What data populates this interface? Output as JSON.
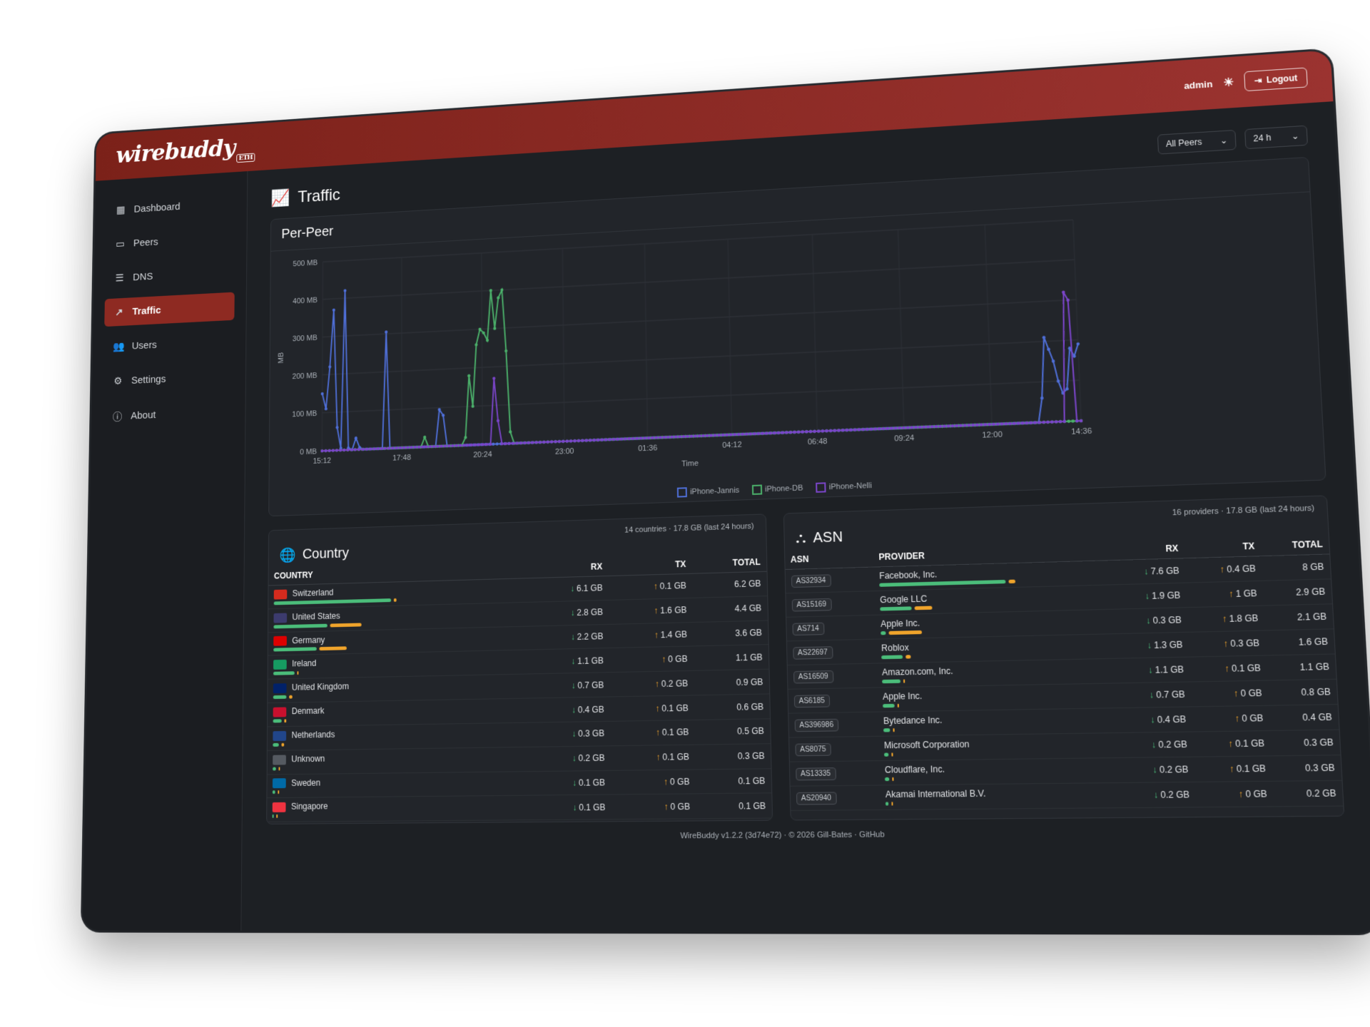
{
  "app": {
    "logo": "wirebuddy",
    "logo_badge": "ETH"
  },
  "header": {
    "user": "admin",
    "logout_label": "Logout"
  },
  "sidebar": {
    "items": [
      {
        "label": "Dashboard",
        "icon": "dashboard-icon"
      },
      {
        "label": "Peers",
        "icon": "devices-icon"
      },
      {
        "label": "DNS",
        "icon": "dns-icon"
      },
      {
        "label": "Traffic",
        "icon": "trending-icon",
        "active": true
      },
      {
        "label": "Users",
        "icon": "users-icon"
      },
      {
        "label": "Settings",
        "icon": "gear-icon"
      },
      {
        "label": "About",
        "icon": "info-icon"
      }
    ]
  },
  "page": {
    "title": "Traffic",
    "peer_select": "All Peers",
    "range_select": "24 h"
  },
  "chart_card": {
    "title": "Per-Peer"
  },
  "chart_data": {
    "type": "line",
    "xlabel": "Time",
    "ylabel": "MB",
    "ylim": [
      0,
      500
    ],
    "yticks": [
      "0 MB",
      "100 MB",
      "200 MB",
      "300 MB",
      "400 MB",
      "500 MB"
    ],
    "xticks": [
      "15:12",
      "17:48",
      "20:24",
      "23:00",
      "01:36",
      "04:12",
      "06:48",
      "09:24",
      "12:00",
      "14:36"
    ],
    "legend_position": "bottom",
    "series": [
      {
        "name": "iPhone-Jannis",
        "color": "#4f6fd8",
        "values": [
          150,
          110,
          220,
          370,
          60,
          5,
          420,
          5,
          0,
          30,
          5,
          0,
          0,
          0,
          0,
          0,
          0,
          305,
          0,
          0,
          0,
          0,
          0,
          0,
          0,
          0,
          0,
          0,
          0,
          0,
          0,
          95,
          80,
          0,
          0,
          0,
          0,
          0,
          0,
          0,
          0,
          0,
          0,
          0,
          0,
          0,
          0,
          0,
          0,
          0,
          0,
          0,
          0,
          0,
          0,
          0,
          0,
          0,
          0,
          0,
          0,
          0,
          0,
          0,
          0,
          0,
          0,
          0,
          0,
          0,
          0,
          0,
          0,
          0,
          0,
          0,
          0,
          0,
          0,
          0,
          0,
          0,
          0,
          0,
          0,
          0,
          0,
          0,
          0,
          0,
          0,
          0,
          0,
          0,
          0,
          0,
          0,
          0,
          0,
          0,
          0,
          0,
          0,
          0,
          0,
          0,
          0,
          0,
          0,
          0,
          0,
          0,
          0,
          0,
          0,
          0,
          0,
          0,
          0,
          0,
          0,
          0,
          0,
          0,
          0,
          0,
          0,
          0,
          0,
          0,
          0,
          0,
          0,
          0,
          0,
          0,
          0,
          0,
          0,
          0,
          0,
          0,
          0,
          0,
          0,
          0,
          0,
          0,
          0,
          0,
          0,
          0,
          0,
          0,
          0,
          0,
          0,
          0,
          0,
          0,
          0,
          0,
          0,
          0,
          0,
          0,
          0,
          0,
          0,
          0,
          0,
          0,
          0,
          0,
          0,
          0,
          0,
          0,
          0,
          0,
          0,
          60,
          210,
          180,
          150,
          100,
          70,
          80,
          180,
          160,
          190
        ]
      },
      {
        "name": "iPhone-DB",
        "color": "#4bb06a",
        "values": [
          0,
          0,
          0,
          0,
          0,
          0,
          0,
          0,
          0,
          0,
          0,
          0,
          0,
          0,
          0,
          0,
          0,
          0,
          0,
          0,
          0,
          0,
          0,
          0,
          0,
          0,
          0,
          0,
          25,
          0,
          0,
          0,
          0,
          0,
          0,
          0,
          0,
          0,
          0,
          20,
          180,
          100,
          260,
          300,
          290,
          270,
          400,
          300,
          380,
          400,
          240,
          30,
          0,
          0,
          0,
          0,
          0,
          0,
          0,
          0,
          0,
          0,
          0,
          0,
          0,
          0,
          0,
          0,
          0,
          0,
          0,
          0,
          0,
          0,
          0,
          0,
          0,
          0,
          0,
          0,
          0,
          0,
          0,
          0,
          0,
          0,
          0,
          0,
          0,
          0,
          0,
          0,
          0,
          0,
          0,
          0,
          0,
          0,
          0,
          0,
          0,
          0,
          0,
          0,
          0,
          0,
          0,
          0,
          0,
          0,
          0,
          0,
          0,
          0,
          0,
          0,
          0,
          0,
          0,
          0,
          0,
          0,
          0,
          0,
          0,
          0,
          0,
          0,
          0,
          0,
          0,
          0,
          0,
          0,
          0,
          0,
          0,
          0,
          0,
          0,
          0,
          0,
          0,
          0,
          0,
          0,
          0,
          0,
          0,
          0,
          0,
          0,
          0,
          0,
          0,
          0,
          0,
          0,
          0,
          0,
          0,
          0,
          0,
          0,
          0,
          0,
          0,
          0,
          0,
          0,
          0,
          0,
          0,
          0,
          0,
          0,
          0,
          0,
          0,
          0,
          0,
          0,
          0,
          0,
          0,
          0,
          0,
          0,
          0,
          0,
          0,
          0,
          0,
          0,
          0,
          0,
          0
        ]
      },
      {
        "name": "iPhone-Nelli",
        "color": "#7a45c8",
        "values": [
          0,
          0,
          0,
          0,
          0,
          0,
          0,
          0,
          0,
          0,
          0,
          0,
          0,
          0,
          0,
          0,
          0,
          0,
          0,
          0,
          0,
          0,
          0,
          0,
          0,
          0,
          0,
          0,
          0,
          0,
          0,
          0,
          0,
          0,
          0,
          0,
          0,
          0,
          0,
          0,
          0,
          0,
          0,
          0,
          0,
          0,
          170,
          60,
          0,
          0,
          0,
          0,
          0,
          0,
          0,
          0,
          0,
          0,
          0,
          0,
          0,
          0,
          0,
          0,
          0,
          0,
          0,
          0,
          0,
          0,
          0,
          0,
          0,
          0,
          0,
          0,
          0,
          0,
          0,
          0,
          0,
          0,
          0,
          0,
          0,
          0,
          0,
          0,
          0,
          0,
          0,
          0,
          0,
          0,
          0,
          0,
          0,
          0,
          0,
          0,
          0,
          0,
          0,
          0,
          0,
          0,
          0,
          0,
          0,
          0,
          0,
          0,
          0,
          0,
          0,
          0,
          0,
          0,
          0,
          0,
          0,
          0,
          0,
          0,
          0,
          0,
          0,
          0,
          0,
          0,
          0,
          0,
          0,
          0,
          0,
          0,
          0,
          0,
          0,
          0,
          0,
          0,
          0,
          0,
          0,
          0,
          0,
          0,
          0,
          0,
          0,
          0,
          0,
          0,
          0,
          0,
          0,
          0,
          0,
          0,
          0,
          0,
          0,
          0,
          0,
          0,
          0,
          0,
          0,
          0,
          0,
          0,
          0,
          0,
          0,
          0,
          0,
          0,
          0,
          0,
          0,
          0,
          0,
          0,
          0,
          0,
          0,
          0,
          0,
          0,
          320,
          300,
          0,
          0
        ]
      }
    ]
  },
  "country": {
    "title": "Country",
    "subtitle": "14 countries · 17.8 GB (last 24 hours)",
    "columns": [
      "COUNTRY",
      "RX",
      "TX",
      "TOTAL"
    ],
    "rows": [
      {
        "name": "Switzerland",
        "rx": "6.1 GB",
        "tx": "0.1 GB",
        "total": "6.2 GB",
        "rx_frac": 0.98,
        "tx_frac": 0.02,
        "flag": "#d52b1e"
      },
      {
        "name": "United States",
        "rx": "2.8 GB",
        "tx": "1.6 GB",
        "total": "4.4 GB",
        "rx_frac": 0.45,
        "tx_frac": 0.26,
        "flag": "#3c3b6e"
      },
      {
        "name": "Germany",
        "rx": "2.2 GB",
        "tx": "1.4 GB",
        "total": "3.6 GB",
        "rx_frac": 0.36,
        "tx_frac": 0.23,
        "flag": "#dd0000"
      },
      {
        "name": "Ireland",
        "rx": "1.1 GB",
        "tx": "0 GB",
        "total": "1.1 GB",
        "rx_frac": 0.18,
        "tx_frac": 0.01,
        "flag": "#169b62"
      },
      {
        "name": "United Kingdom",
        "rx": "0.7 GB",
        "tx": "0.2 GB",
        "total": "0.9 GB",
        "rx_frac": 0.11,
        "tx_frac": 0.03,
        "flag": "#012169"
      },
      {
        "name": "Denmark",
        "rx": "0.4 GB",
        "tx": "0.1 GB",
        "total": "0.6 GB",
        "rx_frac": 0.07,
        "tx_frac": 0.02,
        "flag": "#c8102e"
      },
      {
        "name": "Netherlands",
        "rx": "0.3 GB",
        "tx": "0.1 GB",
        "total": "0.5 GB",
        "rx_frac": 0.05,
        "tx_frac": 0.02,
        "flag": "#21468b"
      },
      {
        "name": "Unknown",
        "rx": "0.2 GB",
        "tx": "0.1 GB",
        "total": "0.3 GB",
        "rx_frac": 0.03,
        "tx_frac": 0.01,
        "flag": "#555a61"
      },
      {
        "name": "Sweden",
        "rx": "0.1 GB",
        "tx": "0 GB",
        "total": "0.1 GB",
        "rx_frac": 0.02,
        "tx_frac": 0.01,
        "flag": "#006aa7"
      },
      {
        "name": "Singapore",
        "rx": "0.1 GB",
        "tx": "0 GB",
        "total": "0.1 GB",
        "rx_frac": 0.01,
        "tx_frac": 0.0,
        "flag": "#ef3340"
      }
    ]
  },
  "asn": {
    "title": "ASN",
    "subtitle": "16 providers · 17.8 GB (last 24 hours)",
    "columns": [
      "ASN",
      "PROVIDER",
      "RX",
      "TX",
      "TOTAL"
    ],
    "rows": [
      {
        "asn": "AS32934",
        "provider": "Facebook, Inc.",
        "rx": "7.6 GB",
        "tx": "0.4 GB",
        "total": "8 GB",
        "rx_frac": 0.95,
        "tx_frac": 0.05
      },
      {
        "asn": "AS15169",
        "provider": "Google LLC",
        "rx": "1.9 GB",
        "tx": "1 GB",
        "total": "2.9 GB",
        "rx_frac": 0.24,
        "tx_frac": 0.13
      },
      {
        "asn": "AS714",
        "provider": "Apple Inc.",
        "rx": "0.3 GB",
        "tx": "1.8 GB",
        "total": "2.1 GB",
        "rx_frac": 0.04,
        "tx_frac": 0.25
      },
      {
        "asn": "AS22697",
        "provider": "Roblox",
        "rx": "1.3 GB",
        "tx": "0.3 GB",
        "total": "1.6 GB",
        "rx_frac": 0.16,
        "tx_frac": 0.04
      },
      {
        "asn": "AS16509",
        "provider": "Amazon.com, Inc.",
        "rx": "1.1 GB",
        "tx": "0.1 GB",
        "total": "1.1 GB",
        "rx_frac": 0.14,
        "tx_frac": 0.01
      },
      {
        "asn": "AS6185",
        "provider": "Apple Inc.",
        "rx": "0.7 GB",
        "tx": "0 GB",
        "total": "0.8 GB",
        "rx_frac": 0.09,
        "tx_frac": 0.01
      },
      {
        "asn": "AS396986",
        "provider": "Bytedance Inc.",
        "rx": "0.4 GB",
        "tx": "0 GB",
        "total": "0.4 GB",
        "rx_frac": 0.05,
        "tx_frac": 0.01
      },
      {
        "asn": "AS8075",
        "provider": "Microsoft Corporation",
        "rx": "0.2 GB",
        "tx": "0.1 GB",
        "total": "0.3 GB",
        "rx_frac": 0.03,
        "tx_frac": 0.01
      },
      {
        "asn": "AS13335",
        "provider": "Cloudflare, Inc.",
        "rx": "0.2 GB",
        "tx": "0.1 GB",
        "total": "0.3 GB",
        "rx_frac": 0.03,
        "tx_frac": 0.01
      },
      {
        "asn": "AS20940",
        "provider": "Akamai International B.V.",
        "rx": "0.2 GB",
        "tx": "0 GB",
        "total": "0.2 GB",
        "rx_frac": 0.02,
        "tx_frac": 0.0
      }
    ]
  },
  "footer": {
    "text": "WireBuddy v1.2.2 (3d74e72) · © 2026 Gill-Bates · ",
    "link": "GitHub"
  }
}
